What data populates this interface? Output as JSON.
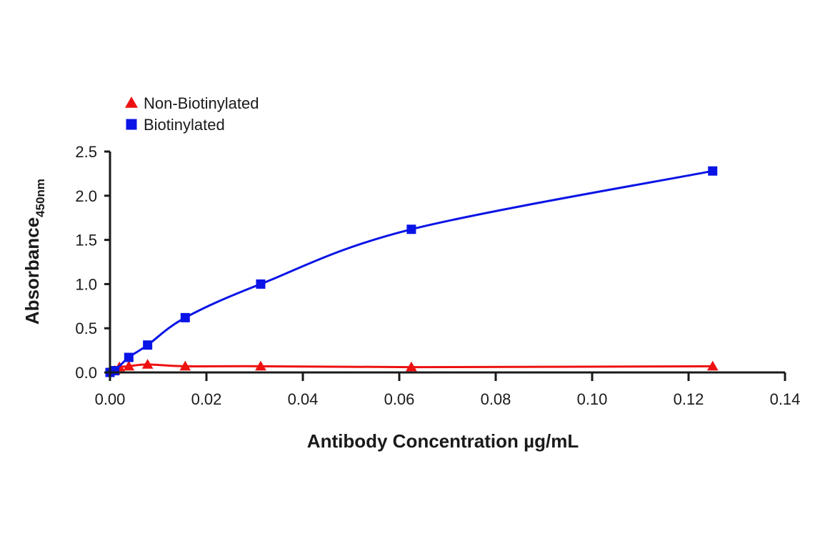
{
  "chart_data": {
    "type": "line",
    "title": "",
    "xlabel": "Antibody Concentration µg/mL",
    "ylabel": "Absorbance",
    "ylabel_subscript": "450nm",
    "xlim": [
      0,
      0.14
    ],
    "ylim": [
      0,
      2.5
    ],
    "x_ticks": [
      0.0,
      0.02,
      0.04,
      0.06,
      0.08,
      0.1,
      0.12,
      0.14
    ],
    "x_tick_labels": [
      "0.00",
      "0.02",
      "0.04",
      "0.06",
      "0.08",
      "0.10",
      "0.12",
      "0.14"
    ],
    "y_ticks": [
      0.0,
      0.5,
      1.0,
      1.5,
      2.0,
      2.5
    ],
    "y_tick_labels": [
      "0.0",
      "0.5",
      "1.0",
      "1.5",
      "2.0",
      "2.5"
    ],
    "grid": false,
    "legend_position": "top-left",
    "series": [
      {
        "name": "Non-Biotinylated",
        "color": "#ee1111",
        "marker": "triangle",
        "x": [
          0.000977,
          0.00195,
          0.0039,
          0.0078,
          0.0156,
          0.03125,
          0.0625,
          0.125
        ],
        "y": [
          0.02,
          0.06,
          0.07,
          0.09,
          0.07,
          0.07,
          0.06,
          0.07
        ]
      },
      {
        "name": "Biotinylated",
        "color": "#0a14e6",
        "marker": "square",
        "x": [
          0.0,
          0.000977,
          0.0039,
          0.0078,
          0.0156,
          0.03125,
          0.0625,
          0.125
        ],
        "y": [
          0.0,
          0.02,
          0.17,
          0.31,
          0.62,
          1.0,
          1.62,
          2.28
        ]
      }
    ]
  }
}
